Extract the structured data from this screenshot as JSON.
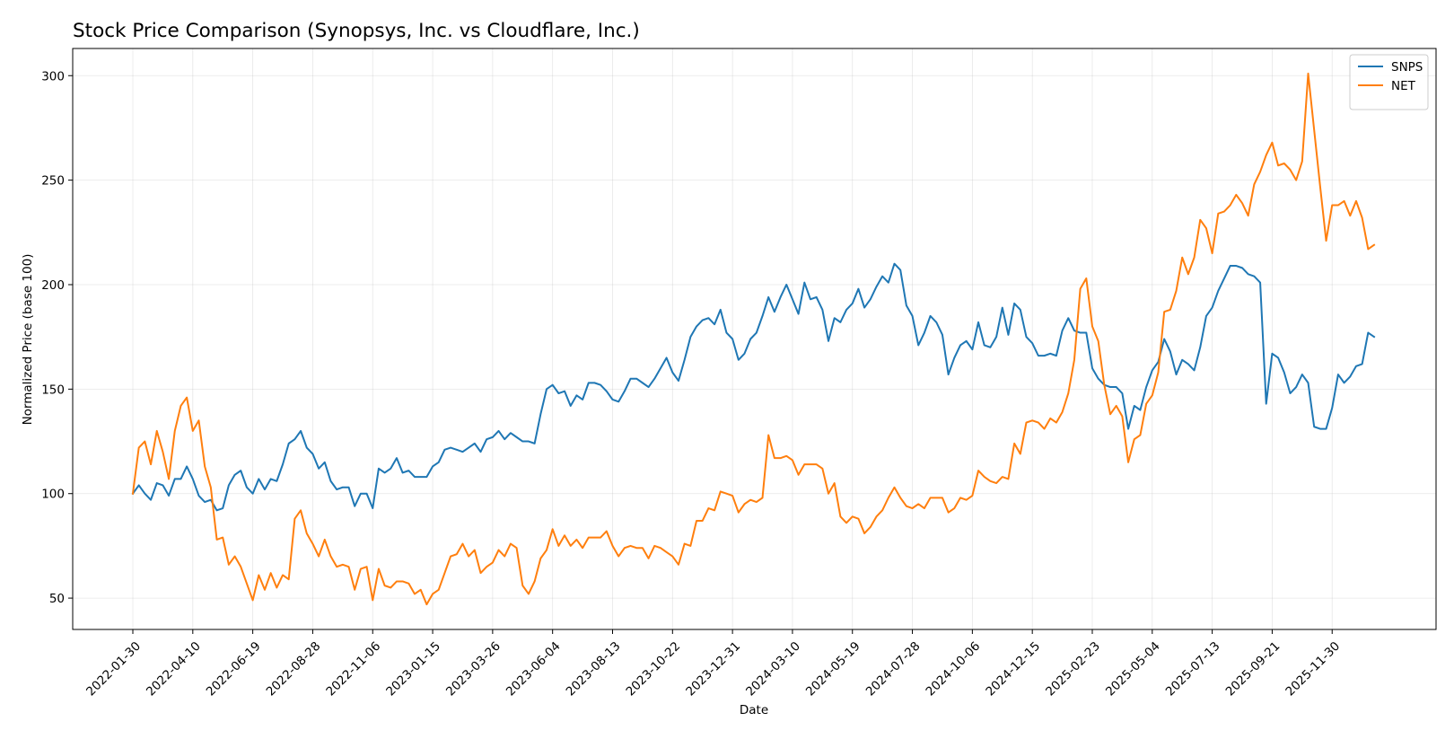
{
  "chart_data": {
    "type": "line",
    "title": "Stock Price Comparison (Synopsys, Inc. vs Cloudflare, Inc.)",
    "xlabel": "Date",
    "ylabel": "Normalized Price (base 100)",
    "x_start": "2022-01-30",
    "x_end": "2026-01-18",
    "ylim": [
      35,
      313
    ],
    "yticks": [
      50,
      100,
      150,
      200,
      250,
      300
    ],
    "xticks": [
      "2022-01-30",
      "2022-04-10",
      "2022-06-19",
      "2022-08-28",
      "2022-11-06",
      "2023-01-15",
      "2023-03-26",
      "2023-06-04",
      "2023-08-13",
      "2023-10-22",
      "2023-12-31",
      "2024-03-10",
      "2024-05-19",
      "2024-07-28",
      "2024-10-06",
      "2024-12-15",
      "2025-02-23",
      "2025-05-04",
      "2025-07-13",
      "2025-09-21",
      "2025-11-30"
    ],
    "grid": true,
    "legend": "top-right",
    "series": [
      {
        "name": "SNPS",
        "color": "#1f77b4",
        "values": [
          100,
          104,
          100,
          97,
          105,
          104,
          99,
          107,
          107,
          113,
          107,
          99,
          96,
          97,
          92,
          93,
          104,
          109,
          111,
          103,
          100,
          107,
          102,
          107,
          106,
          114,
          124,
          126,
          130,
          122,
          119,
          112,
          115,
          106,
          102,
          103,
          103,
          94,
          100,
          100,
          93,
          112,
          110,
          112,
          117,
          110,
          111,
          108,
          108,
          108,
          113,
          115,
          121,
          122,
          121,
          120,
          122,
          124,
          120,
          126,
          127,
          130,
          126,
          129,
          127,
          125,
          125,
          124,
          138,
          150,
          152,
          148,
          149,
          142,
          147,
          145,
          153,
          153,
          152,
          149,
          145,
          144,
          149,
          155,
          155,
          153,
          151,
          155,
          160,
          165,
          158,
          154,
          164,
          175,
          180,
          183,
          184,
          181,
          188,
          177,
          174,
          164,
          167,
          174,
          177,
          185,
          194,
          187,
          194,
          200,
          193,
          186,
          201,
          193,
          194,
          188,
          173,
          184,
          182,
          188,
          191,
          198,
          189,
          193,
          199,
          204,
          201,
          210,
          207,
          190,
          185,
          171,
          177,
          185,
          182,
          176,
          157,
          165,
          171,
          173,
          169,
          182,
          171,
          170,
          175,
          189,
          176,
          191,
          188,
          175,
          172,
          166,
          166,
          167,
          166,
          178,
          184,
          178,
          177,
          177,
          160,
          155,
          152,
          151,
          151,
          148,
          131,
          142,
          140,
          151,
          159,
          163,
          174,
          168,
          157,
          164,
          162,
          159,
          170,
          185,
          189,
          197,
          203,
          209,
          209,
          208,
          205,
          204,
          201,
          143,
          167,
          165,
          158,
          148,
          151,
          157,
          153,
          132,
          131,
          131,
          141,
          157,
          153,
          156,
          161,
          162,
          177,
          175
        ]
      },
      {
        "name": "NET",
        "color": "#ff7f0e",
        "values": [
          100,
          122,
          125,
          114,
          130,
          120,
          107,
          130,
          142,
          146,
          130,
          135,
          113,
          103,
          78,
          79,
          66,
          70,
          65,
          57,
          49,
          61,
          54,
          62,
          55,
          61,
          59,
          88,
          92,
          81,
          76,
          70,
          78,
          70,
          65,
          66,
          65,
          54,
          64,
          65,
          49,
          64,
          56,
          55,
          58,
          58,
          57,
          52,
          54,
          47,
          52,
          54,
          62,
          70,
          71,
          76,
          70,
          73,
          62,
          65,
          67,
          73,
          70,
          76,
          74,
          56,
          52,
          58,
          69,
          73,
          83,
          75,
          80,
          75,
          78,
          74,
          79,
          79,
          79,
          82,
          75,
          70,
          74,
          75,
          74,
          74,
          69,
          75,
          74,
          72,
          70,
          66,
          76,
          75,
          87,
          87,
          93,
          92,
          101,
          100,
          99,
          91,
          95,
          97,
          96,
          98,
          128,
          117,
          117,
          118,
          116,
          109,
          114,
          114,
          114,
          112,
          100,
          105,
          89,
          86,
          89,
          88,
          81,
          84,
          89,
          92,
          98,
          103,
          98,
          94,
          93,
          95,
          93,
          98,
          98,
          98,
          91,
          93,
          98,
          97,
          99,
          111,
          108,
          106,
          105,
          108,
          107,
          124,
          119,
          134,
          135,
          134,
          131,
          136,
          134,
          139,
          148,
          164,
          198,
          203,
          180,
          173,
          152,
          138,
          142,
          137,
          115,
          126,
          128,
          143,
          147,
          158,
          187,
          188,
          197,
          213,
          205,
          213,
          231,
          227,
          215,
          234,
          235,
          238,
          243,
          239,
          233,
          248,
          254,
          262,
          268,
          257,
          258,
          255,
          250,
          259,
          301,
          274,
          247,
          221,
          238,
          238,
          240,
          233,
          240,
          232,
          217,
          219
        ]
      }
    ]
  }
}
